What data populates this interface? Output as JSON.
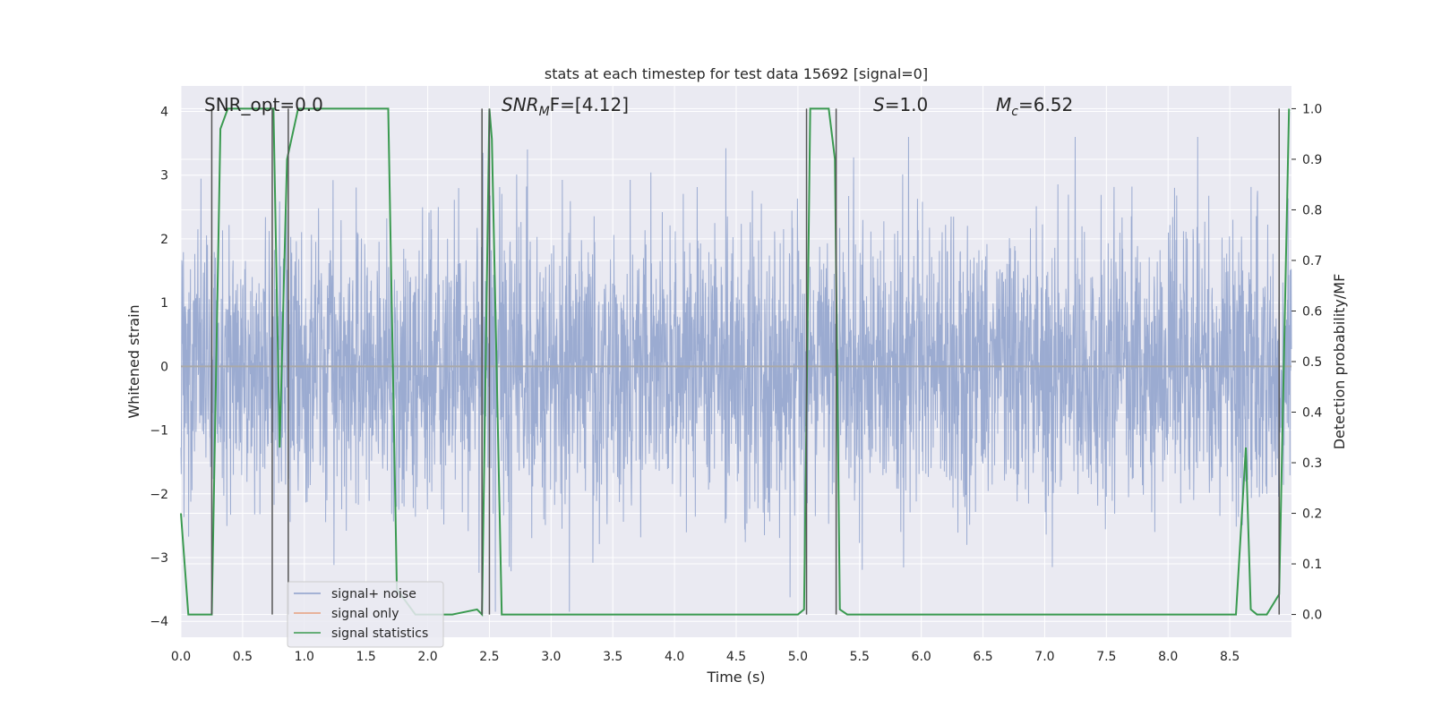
{
  "chart_data": {
    "type": "line",
    "title": "stats at each timestep for test data 15692 [signal=0]",
    "xlabel": "Time (s)",
    "ylabel": "Whitened strain",
    "y2label": "Detection probability/MF",
    "xlim": [
      0.0,
      9.0
    ],
    "ylim": [
      -4.25,
      4.4
    ],
    "y2lim": [
      -0.045,
      1.045
    ],
    "x_ticks": [
      "0.0",
      "0.5",
      "1.0",
      "1.5",
      "2.0",
      "2.5",
      "3.0",
      "3.5",
      "4.0",
      "4.5",
      "5.0",
      "5.5",
      "6.0",
      "6.5",
      "7.0",
      "7.5",
      "8.0",
      "8.5"
    ],
    "y_ticks": [
      "4",
      "3",
      "2",
      "1",
      "0",
      "−1",
      "−2",
      "−3",
      "−4"
    ],
    "y2_ticks": [
      "1.0",
      "0.9",
      "0.8",
      "0.7",
      "0.6",
      "0.5",
      "0.4",
      "0.3",
      "0.2",
      "0.1",
      "0.0"
    ],
    "grid": true,
    "annotations": {
      "snr_opt": "SNR_opt=0.0",
      "snr_mf_name": "SNR",
      "snr_mf_sub": "M",
      "snr_mf_rest": "F=[4.12]",
      "s_name": "S",
      "s_rest": "=1.0",
      "mc_name": "M",
      "mc_sub": "c",
      "mc_rest": "=6.52"
    },
    "legend": {
      "position": "lower-left",
      "entries": [
        "signal+ noise",
        "signal only",
        "signal statistics"
      ]
    },
    "colors": {
      "signal_noise": "#8da0cb",
      "signal_only": "#e8a07e",
      "statistics": "#3a9a50",
      "vlines": "#555555",
      "axes_bg": "#eaeaf2"
    },
    "series": [
      {
        "name": "signal+ noise",
        "description": "Gaussian whitened noise, std ~1.05, spiky, range about -3.8 to 3.6",
        "noise_std": 1.05,
        "noise_seed": 15692
      },
      {
        "name": "signal only",
        "x": [
          0.0,
          9.0
        ],
        "y": [
          0.0,
          0.0
        ]
      },
      {
        "name": "signal statistics",
        "x": [
          0.0,
          0.06,
          0.25,
          0.32,
          0.38,
          0.55,
          0.72,
          0.75,
          0.8,
          0.86,
          0.95,
          1.2,
          1.5,
          1.68,
          1.75,
          1.9,
          2.05,
          2.2,
          2.4,
          2.44,
          2.5,
          2.52,
          2.6,
          3.0,
          4.0,
          5.0,
          5.05,
          5.1,
          5.12,
          5.25,
          5.3,
          5.34,
          5.4,
          5.7,
          5.9,
          6.0,
          7.0,
          8.0,
          8.55,
          8.63,
          8.67,
          8.72,
          8.8,
          8.9,
          8.98
        ],
        "y": [
          0.2,
          0.0,
          0.0,
          0.96,
          1.0,
          1.0,
          1.0,
          1.0,
          0.33,
          0.9,
          1.0,
          1.0,
          1.0,
          1.0,
          0.05,
          0.0,
          0.0,
          0.0,
          0.01,
          0.0,
          1.0,
          0.94,
          0.0,
          0.0,
          0.0,
          0.0,
          0.01,
          1.0,
          1.0,
          1.0,
          0.9,
          0.01,
          0.0,
          0.0,
          0.0,
          0.0,
          0.0,
          0.0,
          0.0,
          0.33,
          0.01,
          0.0,
          0.0,
          0.04,
          1.0
        ]
      }
    ],
    "vlines_x": [
      0.25,
      0.74,
      0.87,
      2.44,
      2.5,
      5.07,
      5.31,
      8.9
    ]
  }
}
